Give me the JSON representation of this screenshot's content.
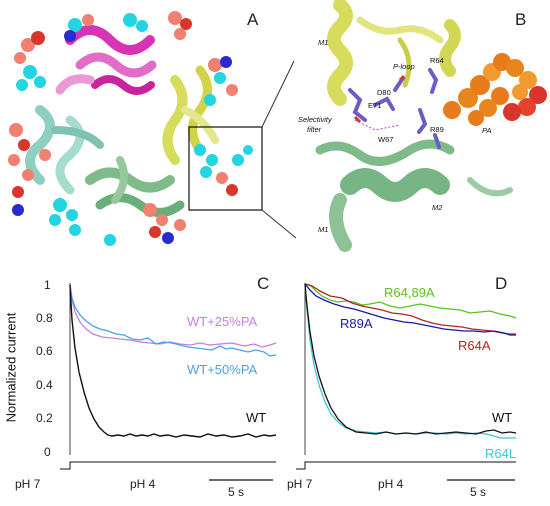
{
  "panels": {
    "a": {
      "letter": "A"
    },
    "b": {
      "letter": "B",
      "labels": {
        "m1_top": "M1",
        "p_loop": "P-loop",
        "r64": "R64",
        "d80": "D80",
        "e71": "E71",
        "selectivity": "Selectivity",
        "filter": "filter",
        "w67": "W67",
        "r89": "R89",
        "pa": "PA",
        "m1_bottom": "M1",
        "m2": "M2"
      }
    },
    "c": {
      "letter": "C",
      "y_axis_label": "Normalized current",
      "y_ticks": [
        "1",
        "0.8",
        "0.6",
        "0.4",
        "0.2",
        "0"
      ],
      "trace_labels": {
        "wt25": "WT+25%PA",
        "wt50": "WT+50%PA",
        "wt": "WT"
      },
      "ph_start": "pH 7",
      "ph_end": "pH 4",
      "scale_label": "5 s"
    },
    "d": {
      "letter": "D",
      "trace_labels": {
        "r6489": "R64,89A",
        "r89": "R89A",
        "r64a": "R64A",
        "wt": "WT",
        "r64l": "R64L"
      },
      "ph_start": "pH 7",
      "ph_end": "pH 4",
      "scale_label": "5 s"
    }
  },
  "colors": {
    "wt": "#111111",
    "wt25pa": "#c77ee0",
    "wt50pa": "#4aa3e0",
    "r6489a": "#5cc21e",
    "r89a": "#1a1aa8",
    "r64a": "#b3261e",
    "r64l": "#3cc6d8",
    "helix_magenta": "#d634b4",
    "helix_yellow": "#d8dc5c",
    "helix_green": "#7fba8a",
    "helix_teal": "#8fcfc0",
    "lipid_orange": "#e87c1c",
    "sphere_cyan": "#22d5e0",
    "sphere_salmon": "#f08070",
    "sphere_red": "#d8362c",
    "sphere_blue": "#2a2ad0"
  }
}
